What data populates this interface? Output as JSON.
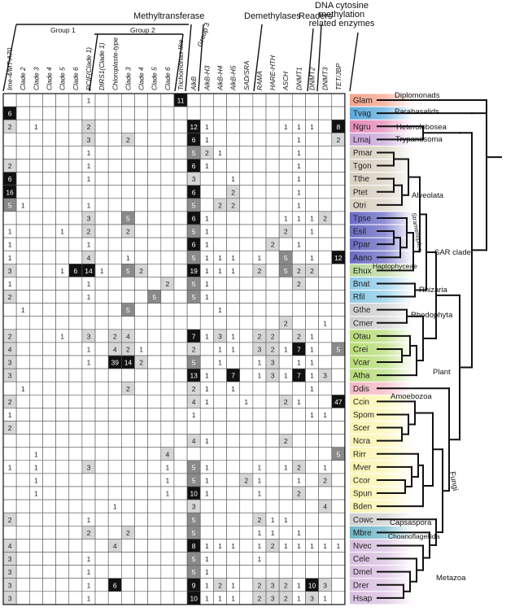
{
  "headers": {
    "methyltransferase": "Methyltransferase",
    "group1": "Group 1",
    "group2": "Group 2",
    "group3": "Group 3",
    "demethylases": "Demethylases",
    "readers": "Readers",
    "dna_methylation": [
      "DNA cytosine",
      "methylation",
      "related enzymes"
    ]
  },
  "columns": [
    "Ime-4/MT-A70",
    "Clade 2",
    "Clade 3",
    "Clade 4",
    "Clade 5",
    "Clade 6",
    "PCIF(Clade 1)",
    "DIRS1(Clade 1)",
    "Chloroplaste-type",
    "Clade 3",
    "Clade 4",
    "Clade 5",
    "Clade 6",
    "Trichomonas-like",
    "AlkB",
    "AlkB-H3",
    "AlkB-H4",
    "AlkB-H5",
    "SAD/SRA",
    "RAMA",
    "HARE-HTH",
    "ASCH",
    "DNMT1",
    "DNMT2",
    "DNMT3",
    "TET/JBP"
  ],
  "species": [
    "Glam",
    "Tvag",
    "Ngru",
    "Lmaj",
    "Pmar",
    "Tgon",
    "Tthe",
    "Ptet",
    "Otri",
    "Tpse",
    "Esil",
    "Ppar",
    "Aano",
    "Ehux",
    "Bnat",
    "Rfil",
    "Gthe",
    "Cmer",
    "Otau",
    "Crei",
    "Vcar",
    "Atha",
    "Ddis",
    "Ccin",
    "Spom",
    "Scer",
    "Ncra",
    "Rirr",
    "Mver",
    "Ccor",
    "Spun",
    "Bden",
    "Cowc",
    "Mbre",
    "Nvec",
    "Cele",
    "Dmel",
    "Drer",
    "Hsap"
  ],
  "species_colors": [
    "#f4a48c",
    "#5aa9dd",
    "#e48ab8",
    "#c9a6d8",
    "#d8d0c0",
    "#d8d0c0",
    "#d8d0c0",
    "#d8d0c0",
    "#d8d0c0",
    "#6a6bc4",
    "#6a6bc4",
    "#6a6bc4",
    "#6a6bc4",
    "#b8d89a",
    "#8ecbe8",
    "#8ecbe8",
    "#cfcfcf",
    "#cfcfcf",
    "#b8dc78",
    "#b8dc78",
    "#b8dc78",
    "#b8dc78",
    "#f3b8c4",
    "#fbf5b2",
    "#fbf5b2",
    "#fbf5b2",
    "#fbf5b2",
    "#fbf5b2",
    "#fbf5b2",
    "#fbf5b2",
    "#fbf5b2",
    "#fbf5b2",
    "#d0d0d0",
    "#6fb6c8",
    "#d8bfe0",
    "#d8bfe0",
    "#d8bfe0",
    "#d8bfe0",
    "#d8bfe0"
  ],
  "matrix": [
    [
      "",
      "",
      "",
      "",
      "",
      "",
      "1",
      "",
      "",
      "",
      "",
      "",
      "",
      "11",
      "",
      "",
      "",
      "",
      "",
      "",
      "",
      "",
      "",
      "",
      "",
      ""
    ],
    [
      "6",
      "",
      "",
      "",
      "",
      "",
      "",
      "",
      "",
      "",
      "",
      "",
      "",
      "",
      "",
      "",
      "",
      "",
      "",
      "",
      "",
      "",
      "",
      "",
      "",
      ""
    ],
    [
      "2",
      "",
      "1",
      "",
      "",
      "",
      "2",
      "",
      "",
      "",
      "",
      "",
      "",
      "",
      "12",
      "1",
      "",
      "",
      "",
      "",
      "",
      "1",
      "1",
      "1",
      "",
      "8"
    ],
    [
      "",
      "",
      "",
      "",
      "",
      "",
      "3",
      "",
      "",
      "2",
      "",
      "",
      "",
      "",
      "6",
      "1",
      "",
      "",
      "",
      "",
      "",
      "",
      "1",
      "",
      "",
      "2"
    ],
    [
      "",
      "",
      "",
      "",
      "",
      "",
      "1",
      "",
      "",
      "",
      "",
      "",
      "",
      "",
      "5",
      "2",
      "1",
      "",
      "",
      "",
      "",
      "",
      "1",
      "",
      "",
      ""
    ],
    [
      "2",
      "",
      "",
      "",
      "",
      "",
      "1",
      "",
      "",
      "",
      "",
      "",
      "",
      "",
      "6",
      "1",
      "",
      "",
      "",
      "",
      "",
      "",
      "1",
      "",
      "",
      ""
    ],
    [
      "6",
      "",
      "",
      "",
      "",
      "",
      "1",
      "",
      "",
      "",
      "",
      "",
      "",
      "",
      "3",
      "",
      "",
      "1",
      "",
      "",
      "",
      "",
      "1",
      "",
      "",
      ""
    ],
    [
      "16",
      "",
      "",
      "",
      "",
      "",
      "",
      "",
      "",
      "",
      "",
      "",
      "",
      "",
      "6",
      "",
      "",
      "2",
      "",
      "",
      "",
      "",
      "1",
      "",
      "",
      ""
    ],
    [
      "5",
      "1",
      "",
      "",
      "",
      "",
      "1",
      "",
      "",
      "",
      "",
      "",
      "",
      "",
      "5",
      "",
      "2",
      "2",
      "",
      "",
      "",
      "",
      "1",
      "",
      "",
      ""
    ],
    [
      "",
      "",
      "",
      "",
      "",
      "",
      "3",
      "",
      "",
      "5",
      "",
      "",
      "",
      "",
      "6",
      "1",
      "",
      "",
      "",
      "",
      "",
      "1",
      "1",
      "1",
      "2",
      ""
    ],
    [
      "1",
      "",
      "",
      "",
      "1",
      "",
      "2",
      "",
      "",
      "2",
      "",
      "",
      "",
      "",
      "5",
      "1",
      "",
      "",
      "",
      "",
      "",
      "2",
      "",
      "1",
      "",
      ""
    ],
    [
      "1",
      "",
      "",
      "",
      "",
      "",
      "1",
      "",
      "",
      "",
      "",
      "",
      "",
      "",
      "6",
      "1",
      "",
      "",
      "",
      "",
      "2",
      "",
      "1",
      "",
      "",
      ""
    ],
    [
      "1",
      "",
      "",
      "",
      "",
      "",
      "4",
      "",
      "",
      "1",
      "",
      "",
      "",
      "",
      "5",
      "1",
      "1",
      "1",
      "",
      "1",
      "",
      "5",
      "",
      "1",
      "",
      "12"
    ],
    [
      "3",
      "",
      "",
      "",
      "1",
      "6",
      "14",
      "1",
      "",
      "5",
      "2",
      "",
      "",
      "",
      "19",
      "1",
      "1",
      "1",
      "",
      "2",
      "",
      "5",
      "2",
      "2",
      "",
      ""
    ],
    [
      "1",
      "",
      "",
      "",
      "",
      "",
      "1",
      "",
      "",
      "",
      "",
      "",
      "2",
      "",
      "5",
      "1",
      "",
      "",
      "",
      "",
      "",
      "",
      "2",
      "",
      "",
      ""
    ],
    [
      "2",
      "",
      "",
      "",
      "",
      "",
      "1",
      "",
      "",
      "",
      "",
      "5",
      "",
      "",
      "5",
      "1",
      "",
      "",
      "",
      "",
      "",
      "",
      "",
      "",
      "",
      ""
    ],
    [
      "",
      "1",
      "",
      "",
      "",
      "",
      "",
      "",
      "",
      "5",
      "",
      "",
      "",
      "",
      "",
      "",
      "1",
      "",
      "",
      "",
      "",
      "",
      "",
      "",
      "",
      ""
    ],
    [
      "",
      "",
      "",
      "",
      "",
      "",
      "",
      "",
      "",
      "",
      "",
      "",
      "",
      "",
      "",
      "",
      "",
      "",
      "",
      "",
      "",
      "2",
      "",
      "",
      "1",
      ""
    ],
    [
      "2",
      "",
      "",
      "",
      "1",
      "",
      "3",
      "",
      "2",
      "4",
      "",
      "",
      "",
      "",
      "7",
      "1",
      "3",
      "1",
      "",
      "2",
      "2",
      "",
      "2",
      "1",
      "",
      ""
    ],
    [
      "4",
      "",
      "",
      "",
      "",
      "",
      "1",
      "",
      "4",
      "2",
      "1",
      "",
      "",
      "",
      "2",
      "",
      "1",
      "1",
      "",
      "3",
      "2",
      "1",
      "7",
      "1",
      "",
      "5"
    ],
    [
      "3",
      "",
      "",
      "",
      "",
      "",
      "1",
      "",
      "39",
      "14",
      "2",
      "",
      "",
      "",
      "5",
      "",
      "1",
      "",
      "",
      "1",
      "3",
      "",
      "1",
      "1",
      "",
      ""
    ],
    [
      "3",
      "",
      "",
      "",
      "",
      "",
      "",
      "",
      "",
      "",
      "",
      "",
      "",
      "",
      "13",
      "1",
      "",
      "7",
      "",
      "1",
      "3",
      "1",
      "7",
      "1",
      "3",
      ""
    ],
    [
      "",
      "1",
      "",
      "",
      "",
      "",
      "",
      "",
      "",
      "2",
      "",
      "",
      "",
      "",
      "2",
      "1",
      "",
      "1",
      "",
      "",
      "",
      "",
      "",
      "1",
      "",
      ""
    ],
    [
      "2",
      "",
      "",
      "",
      "",
      "",
      "",
      "",
      "",
      "",
      "",
      "",
      "",
      "",
      "4",
      "1",
      "",
      "",
      "1",
      "",
      "",
      "2",
      "1",
      "",
      "",
      "47"
    ],
    [
      "1",
      "",
      "",
      "",
      "",
      "",
      "",
      "",
      "",
      "",
      "",
      "",
      "",
      "",
      "1",
      "",
      "",
      "",
      "",
      "",
      "",
      "",
      "",
      "1",
      "1",
      ""
    ],
    [
      "2",
      "",
      "",
      "",
      "",
      "",
      "",
      "",
      "",
      "",
      "",
      "",
      "",
      "",
      "",
      "",
      "",
      "",
      "",
      "",
      "",
      "",
      "",
      "",
      "",
      ""
    ],
    [
      "",
      "",
      "",
      "",
      "",
      "",
      "",
      "",
      "",
      "",
      "",
      "",
      "",
      "",
      "4",
      "1",
      "",
      "",
      "",
      "",
      "",
      "2",
      "",
      "",
      "",
      ""
    ],
    [
      "",
      "",
      "1",
      "",
      "",
      "",
      "",
      "",
      "",
      "",
      "",
      "",
      "4",
      "",
      "",
      "",
      "",
      "",
      "",
      "",
      "",
      "",
      "",
      "",
      "",
      "5"
    ],
    [
      "1",
      "",
      "1",
      "",
      "",
      "",
      "3",
      "",
      "",
      "",
      "",
      "",
      "1",
      "",
      "5",
      "1",
      "",
      "",
      "",
      "1",
      "",
      "1",
      "2",
      "",
      "1",
      ""
    ],
    [
      "",
      "",
      "1",
      "",
      "",
      "",
      "",
      "",
      "",
      "",
      "",
      "",
      "1",
      "",
      "5",
      "1",
      "",
      "",
      "2",
      "1",
      "",
      "",
      "1",
      "",
      "2",
      ""
    ],
    [
      "",
      "",
      "1",
      "",
      "",
      "",
      "",
      "",
      "",
      "",
      "",
      "",
      "1",
      "",
      "10",
      "1",
      "",
      "",
      "",
      "1",
      "",
      "",
      "2",
      "",
      "",
      ""
    ],
    [
      "",
      "",
      "",
      "",
      "",
      "",
      "",
      "",
      "1",
      "",
      "",
      "",
      "",
      "",
      "3",
      "",
      "",
      "",
      "",
      "",
      "",
      "",
      "",
      "",
      "4",
      ""
    ],
    [
      "2",
      "",
      "",
      "",
      "",
      "",
      "1",
      "",
      "",
      "",
      "",
      "",
      "",
      "",
      "5",
      "",
      "",
      "",
      "",
      "2",
      "1",
      "1",
      "",
      "",
      "",
      ""
    ],
    [
      "",
      "",
      "",
      "",
      "",
      "",
      "2",
      "",
      "",
      "2",
      "",
      "",
      "",
      "",
      "5",
      "",
      "",
      "",
      "",
      "1",
      "1",
      "",
      "1",
      "",
      "",
      ""
    ],
    [
      "4",
      "",
      "",
      "",
      "",
      "",
      "",
      "",
      "4",
      "",
      "",
      "",
      "",
      "",
      "8",
      "1",
      "1",
      "1",
      "",
      "1",
      "2",
      "1",
      "1",
      "1",
      "1",
      "1"
    ],
    [
      "3",
      "",
      "",
      "",
      "",
      "",
      "1",
      "",
      "",
      "",
      "",
      "",
      "",
      "",
      "5",
      "1",
      "",
      "",
      "",
      "1",
      "",
      "",
      "",
      "",
      "",
      ""
    ],
    [
      "3",
      "",
      "",
      "",
      "",
      "",
      "1",
      "",
      "",
      "",
      "",
      "",
      "",
      "",
      "5",
      "1",
      "",
      "",
      "",
      "",
      "",
      "",
      "",
      "",
      "",
      ""
    ],
    [
      "3",
      "",
      "",
      "",
      "",
      "",
      "1",
      "",
      "6",
      "",
      "",
      "",
      "",
      "",
      "9",
      "1",
      "2",
      "1",
      "",
      "2",
      "3",
      "2",
      "1",
      "10",
      "3",
      ""
    ],
    [
      "3",
      "",
      "",
      "",
      "",
      "",
      "1",
      "",
      "",
      "",
      "",
      "",
      "",
      "",
      "10",
      "1",
      "1",
      "1",
      "",
      "2",
      "3",
      "2",
      "1",
      "3",
      "1",
      ""
    ]
  ],
  "clades": {
    "diplomonads": "Diplomonads",
    "parabasalids": "Parabasalids",
    "heterolobosea": "Heterolobosea",
    "trypanosoma": "Trypanosoma",
    "alveolata": "Alveolata",
    "stramenopiles": "Stramenopiles",
    "haptophyceae": "Haptophyceae",
    "sar": "SAR clade",
    "rhizaria": "Rhizaria",
    "rhodophyta": "Rhodophyta",
    "plant": "Plant",
    "amoebozoa": "Amoebozoa",
    "fungi": "Fungi",
    "capsaspora": "Capsaspora",
    "choanoflagellida": "Choanoflagellida",
    "metazoa": "Metazoa"
  },
  "shade_colors": {
    "white": "#ffffff",
    "light": "#d6d6d6",
    "mid": "#8a8a8a",
    "black": "#111111"
  }
}
